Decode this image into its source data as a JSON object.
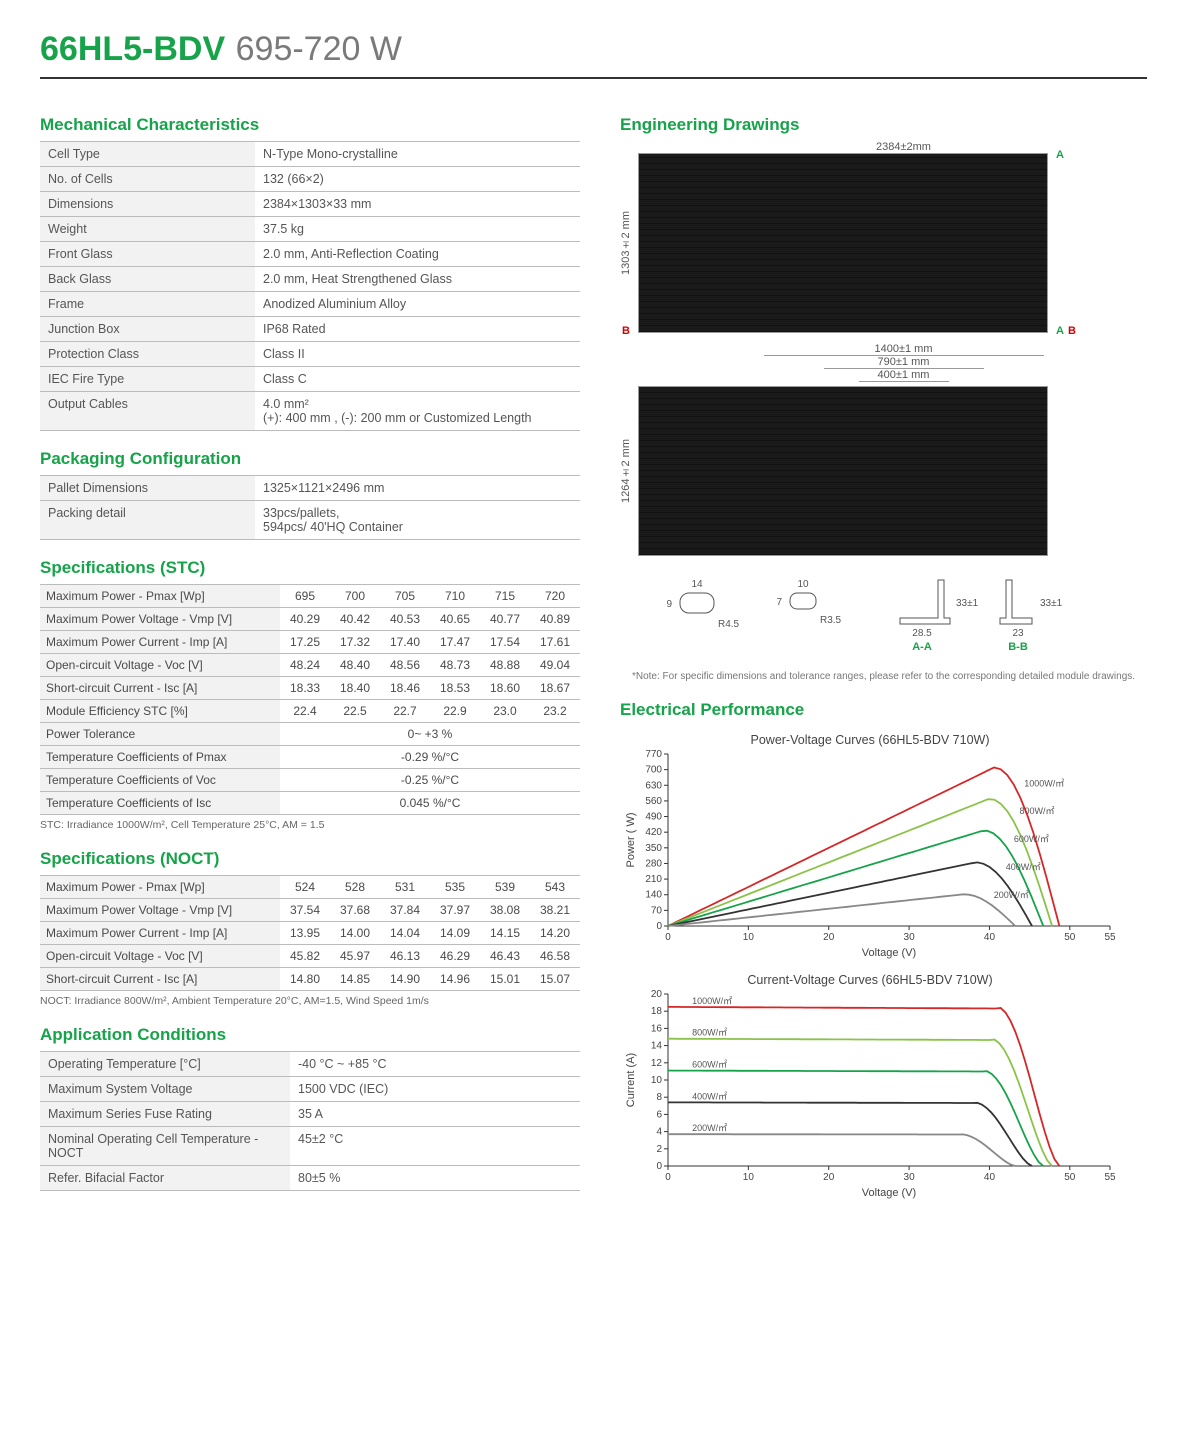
{
  "title": {
    "main": "66HL5-BDV",
    "sub": "695-720 W"
  },
  "headings": {
    "mechanical": "Mechanical Characteristics",
    "packaging": "Packaging Configuration",
    "spec_stc": "Specifications (STC)",
    "spec_noct": "Specifications (NOCT)",
    "app_cond": "Application Conditions",
    "eng_draw": "Engineering Drawings",
    "elec_perf": "Electrical Performance"
  },
  "mechanical": {
    "rows": [
      [
        "Cell Type",
        "N-Type Mono-crystalline"
      ],
      [
        "No. of Cells",
        "132 (66×2)"
      ],
      [
        "Dimensions",
        "2384×1303×33 mm"
      ],
      [
        "Weight",
        "37.5 kg"
      ],
      [
        "Front Glass",
        "2.0 mm, Anti-Reflection Coating"
      ],
      [
        "Back Glass",
        "2.0 mm, Heat Strengthened Glass"
      ],
      [
        "Frame",
        "Anodized Aluminium Alloy"
      ],
      [
        "Junction Box",
        "IP68 Rated"
      ],
      [
        "Protection Class",
        "Class II"
      ],
      [
        "IEC Fire Type",
        "Class C"
      ],
      [
        "Output Cables",
        "4.0 mm²\n(+): 400 mm , (-): 200 mm or Customized Length"
      ]
    ]
  },
  "packaging": {
    "rows": [
      [
        "Pallet Dimensions",
        "1325×1121×2496 mm"
      ],
      [
        "Packing detail",
        "33pcs/pallets,\n594pcs/ 40'HQ Container"
      ]
    ]
  },
  "spec_stc": {
    "rows": [
      [
        "Maximum Power - Pmax [Wp]",
        [
          "695",
          "700",
          "705",
          "710",
          "715",
          "720"
        ]
      ],
      [
        "Maximum Power Voltage - Vmp [V]",
        [
          "40.29",
          "40.42",
          "40.53",
          "40.65",
          "40.77",
          "40.89"
        ]
      ],
      [
        "Maximum Power Current - Imp [A]",
        [
          "17.25",
          "17.32",
          "17.40",
          "17.47",
          "17.54",
          "17.61"
        ]
      ],
      [
        "Open-circuit Voltage - Voc [V]",
        [
          "48.24",
          "48.40",
          "48.56",
          "48.73",
          "48.88",
          "49.04"
        ]
      ],
      [
        "Short-circuit Current - Isc [A]",
        [
          "18.33",
          "18.40",
          "18.46",
          "18.53",
          "18.60",
          "18.67"
        ]
      ],
      [
        "Module Efficiency STC [%]",
        [
          "22.4",
          "22.5",
          "22.7",
          "22.9",
          "23.0",
          "23.2"
        ]
      ]
    ],
    "full_rows": [
      [
        "Power Tolerance",
        "0~ +3 %"
      ],
      [
        "Temperature Coefficients of Pmax",
        "-0.29 %/°C"
      ],
      [
        "Temperature Coefficients of Voc",
        "-0.25 %/°C"
      ],
      [
        "Temperature Coefficients of Isc",
        "0.045 %/°C"
      ]
    ],
    "note": "STC: Irradiance 1000W/m², Cell Temperature 25°C, AM = 1.5"
  },
  "spec_noct": {
    "rows": [
      [
        "Maximum Power - Pmax [Wp]",
        [
          "524",
          "528",
          "531",
          "535",
          "539",
          "543"
        ]
      ],
      [
        "Maximum Power Voltage - Vmp [V]",
        [
          "37.54",
          "37.68",
          "37.84",
          "37.97",
          "38.08",
          "38.21"
        ]
      ],
      [
        "Maximum Power Current - Imp [A]",
        [
          "13.95",
          "14.00",
          "14.04",
          "14.09",
          "14.15",
          "14.20"
        ]
      ],
      [
        "Open-circuit Voltage - Voc [V]",
        [
          "45.82",
          "45.97",
          "46.13",
          "46.29",
          "46.43",
          "46.58"
        ]
      ],
      [
        "Short-circuit Current - Isc [A]",
        [
          "14.80",
          "14.85",
          "14.90",
          "14.96",
          "15.01",
          "15.07"
        ]
      ]
    ],
    "note": "NOCT: Irradiance 800W/m², Ambient Temperature 20°C, AM=1.5, Wind Speed 1m/s"
  },
  "app_cond": {
    "rows": [
      [
        "Operating Temperature [°C]",
        "-40 °C ~ +85 °C"
      ],
      [
        "Maximum System Voltage",
        "1500 VDC (IEC)"
      ],
      [
        "Maximum Series Fuse Rating",
        "35 A"
      ],
      [
        "Nominal Operating Cell Temperature - NOCT",
        "45±2 °C"
      ],
      [
        "Refer. Bifacial Factor",
        "80±5 %"
      ]
    ]
  },
  "eng_drawings": {
    "front_width": "2384±2mm",
    "front_height": "1303±2 mm",
    "back_height": "1264±2 mm",
    "dim_1400": "1400±1 mm",
    "dim_790": "790±1 mm",
    "dim_400": "400±1 mm",
    "profile_aa_w": "28.5",
    "profile_aa_h": "33±1",
    "profile_bb_w": "23",
    "profile_bb_h": "33±1",
    "hole1_w": "14",
    "hole1_h": "9",
    "hole1_r": "R4.5",
    "hole2_w": "10",
    "hole2_h": "7",
    "hole2_r": "R3.5",
    "section_aa": "A-A",
    "section_bb": "B-B",
    "mark_a": "A",
    "mark_b": "B",
    "note": "*Note: For specific dimensions and tolerance ranges, please refer to the corresponding detailed module drawings."
  },
  "charts": {
    "pv": {
      "title": "Power-Voltage Curves (66HL5-BDV 710W)",
      "xlabel": "Voltage (V)",
      "ylabel": "Power ( W)",
      "xlim": [
        0,
        55
      ],
      "xtick_step": 10,
      "xtick_extra": 55,
      "ylim": [
        0,
        770
      ],
      "yticks": [
        0,
        70,
        140,
        210,
        280,
        350,
        420,
        490,
        560,
        630,
        700,
        770
      ],
      "series": [
        {
          "label": "1000W/㎡",
          "color": "#d62728",
          "peak_w": 710,
          "vmp": 40.6,
          "voc": 48.7
        },
        {
          "label": "800W/㎡",
          "color": "#8bc34a",
          "peak_w": 570,
          "vmp": 40.0,
          "voc": 47.8
        },
        {
          "label": "600W/㎡",
          "color": "#17a34a",
          "peak_w": 428,
          "vmp": 39.3,
          "voc": 46.7
        },
        {
          "label": "400W/㎡",
          "color": "#333333",
          "peak_w": 285,
          "vmp": 38.3,
          "voc": 45.3
        },
        {
          "label": "200W/㎡",
          "color": "#888888",
          "peak_w": 142,
          "vmp": 36.8,
          "voc": 43.2
        }
      ]
    },
    "iv": {
      "title": "Current-Voltage Curves (66HL5-BDV 710W)",
      "xlabel": "Voltage (V)",
      "ylabel": "Current (A)",
      "xlim": [
        0,
        55
      ],
      "xtick_step": 10,
      "xtick_extra": 55,
      "ylim": [
        0,
        20
      ],
      "yticks": [
        0,
        2,
        4,
        6,
        8,
        10,
        12,
        14,
        16,
        18,
        20
      ],
      "series": [
        {
          "label": "1000W/㎡",
          "color": "#d62728",
          "isc": 18.5,
          "voc": 48.7
        },
        {
          "label": "800W/㎡",
          "color": "#8bc34a",
          "isc": 14.8,
          "voc": 47.8
        },
        {
          "label": "600W/㎡",
          "color": "#17a34a",
          "isc": 11.1,
          "voc": 46.7
        },
        {
          "label": "400W/㎡",
          "color": "#333333",
          "isc": 7.4,
          "voc": 45.3
        },
        {
          "label": "200W/㎡",
          "color": "#888888",
          "isc": 3.7,
          "voc": 43.2
        }
      ]
    }
  }
}
